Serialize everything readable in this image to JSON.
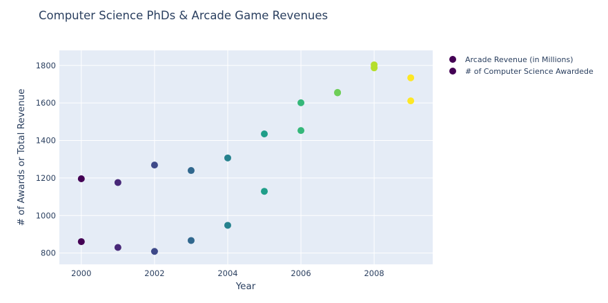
{
  "chart_data": {
    "type": "scatter",
    "title": "Computer Science PhDs & Arcade Game Revenues",
    "xlabel": "Year",
    "ylabel": "# of Awards or Total Revenue",
    "xlim": [
      1999.4,
      2009.6
    ],
    "ylim": [
      740,
      1880
    ],
    "x_ticks": [
      2000,
      2002,
      2004,
      2006,
      2008
    ],
    "y_ticks": [
      800,
      1000,
      1200,
      1400,
      1600,
      1800
    ],
    "grid": true,
    "legend_position": "right",
    "colorscale": "viridis",
    "series": [
      {
        "name": "Arcade Revenue (in Millions)",
        "x": [
          2000,
          2001,
          2002,
          2003,
          2004,
          2005,
          2006,
          2007,
          2008,
          2009
        ],
        "y": [
          1196,
          1176,
          1269,
          1240,
          1307,
          1435,
          1601,
          1654,
          1803,
          1734
        ]
      },
      {
        "name": "# of Computer Science Awardede",
        "x": [
          2000,
          2001,
          2002,
          2003,
          2004,
          2005,
          2006,
          2007,
          2008,
          2009
        ],
        "y": [
          861,
          830,
          809,
          867,
          948,
          1129,
          1453,
          1656,
          1787,
          1611
        ]
      }
    ]
  },
  "colors": {
    "plot_bg": "#e5ecf6",
    "grid": "#ffffff",
    "text": "#2a3f5f",
    "viridis": [
      "#440154",
      "#482878",
      "#3e4989",
      "#31688e",
      "#26828e",
      "#1f9e89",
      "#35b779",
      "#6ece58",
      "#b5de2b",
      "#fde725"
    ]
  }
}
